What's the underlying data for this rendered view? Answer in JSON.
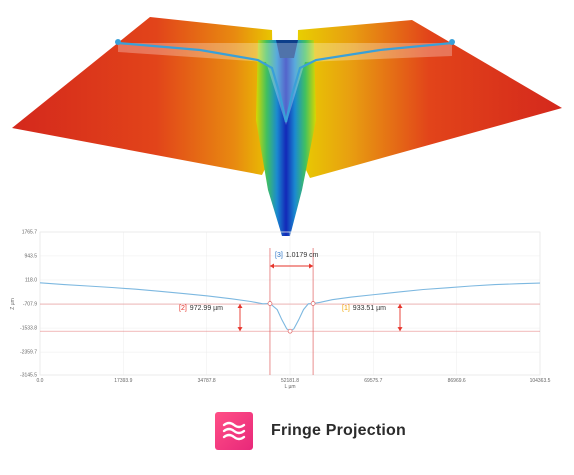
{
  "surface": {
    "colors": [
      "#d4281c",
      "#f0d000",
      "#1530c8"
    ],
    "profile_line_color": "#3aa0d8"
  },
  "chart_data": {
    "type": "line",
    "xlabel": "L µm",
    "ylabel": "Z µm",
    "x_ticks": [
      "0.0",
      "17393.9",
      "34787.8",
      "52181.8",
      "69575.7",
      "86969.6",
      "104363.5"
    ],
    "y_ticks": [
      "1765.7",
      "943.5",
      "118.0",
      "-707.9",
      "-1533.8",
      "-2359.7",
      "-3145.5"
    ],
    "xlim": [
      0,
      104363.5
    ],
    "ylim": [
      -3145.5,
      1765.7
    ],
    "grid": true,
    "series": [
      {
        "color": "#7db8e0",
        "x": [
          0,
          5000,
          10000,
          15000,
          20000,
          25000,
          30000,
          35000,
          40000,
          44000,
          46500,
          48000,
          49500,
          50500,
          51500,
          52200,
          53000,
          54000,
          55000,
          56000,
          57000,
          58500,
          61000,
          65000,
          70000,
          75000,
          80000,
          85000,
          90000,
          95000,
          100000,
          104363.5
        ],
        "y": [
          20,
          -40,
          -90,
          -140,
          -200,
          -270,
          -350,
          -430,
          -530,
          -620,
          -700,
          -690,
          -900,
          -1250,
          -1560,
          -1640,
          -1560,
          -1250,
          -900,
          -700,
          -690,
          -650,
          -560,
          -470,
          -380,
          -290,
          -210,
          -150,
          -90,
          -40,
          -10,
          10
        ]
      }
    ],
    "reference_lines": [
      {
        "y": -707.9,
        "color": "#e06060"
      },
      {
        "y": -1640,
        "color": "#e06060"
      },
      {
        "x": 48000,
        "color": "#e06060"
      },
      {
        "x": 57000,
        "color": "#e06060"
      }
    ],
    "measurements": [
      {
        "tag": "[3]",
        "value": "1.0179 cm"
      },
      {
        "tag": "[2]",
        "value": "972.99 µm"
      },
      {
        "tag": "[1]",
        "value": "933.51 µm"
      }
    ]
  },
  "brand": {
    "name": "Fringe Projection"
  }
}
